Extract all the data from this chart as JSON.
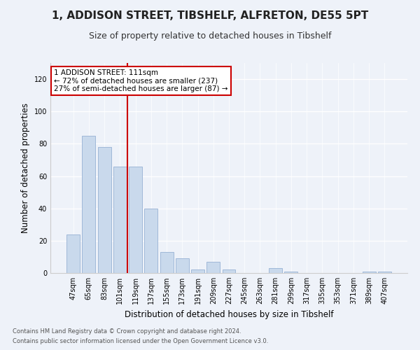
{
  "title1": "1, ADDISON STREET, TIBSHELF, ALFRETON, DE55 5PT",
  "title2": "Size of property relative to detached houses in Tibshelf",
  "xlabel": "Distribution of detached houses by size in Tibshelf",
  "ylabel": "Number of detached properties",
  "categories": [
    "47sqm",
    "65sqm",
    "83sqm",
    "101sqm",
    "119sqm",
    "137sqm",
    "155sqm",
    "173sqm",
    "191sqm",
    "209sqm",
    "227sqm",
    "245sqm",
    "263sqm",
    "281sqm",
    "299sqm",
    "317sqm",
    "335sqm",
    "353sqm",
    "371sqm",
    "389sqm",
    "407sqm"
  ],
  "values": [
    24,
    85,
    78,
    66,
    66,
    40,
    13,
    9,
    2,
    7,
    2,
    0,
    0,
    3,
    1,
    0,
    0,
    0,
    0,
    1,
    1
  ],
  "bar_color": "#c9d9ec",
  "bar_edge_color": "#a0b8d8",
  "vline_x": 3.5,
  "vline_color": "#cc0000",
  "ylim": [
    0,
    130
  ],
  "yticks": [
    0,
    20,
    40,
    60,
    80,
    100,
    120
  ],
  "annotation_text": "1 ADDISON STREET: 111sqm\n← 72% of detached houses are smaller (237)\n27% of semi-detached houses are larger (87) →",
  "annotation_box_color": "#ffffff",
  "annotation_box_edge": "#cc0000",
  "footer1": "Contains HM Land Registry data © Crown copyright and database right 2024.",
  "footer2": "Contains public sector information licensed under the Open Government Licence v3.0.",
  "background_color": "#eef2f9",
  "title1_fontsize": 11,
  "title2_fontsize": 9,
  "ylabel_fontsize": 8.5,
  "xlabel_fontsize": 8.5,
  "tick_fontsize": 7,
  "annot_fontsize": 7.5,
  "footer_fontsize": 6
}
